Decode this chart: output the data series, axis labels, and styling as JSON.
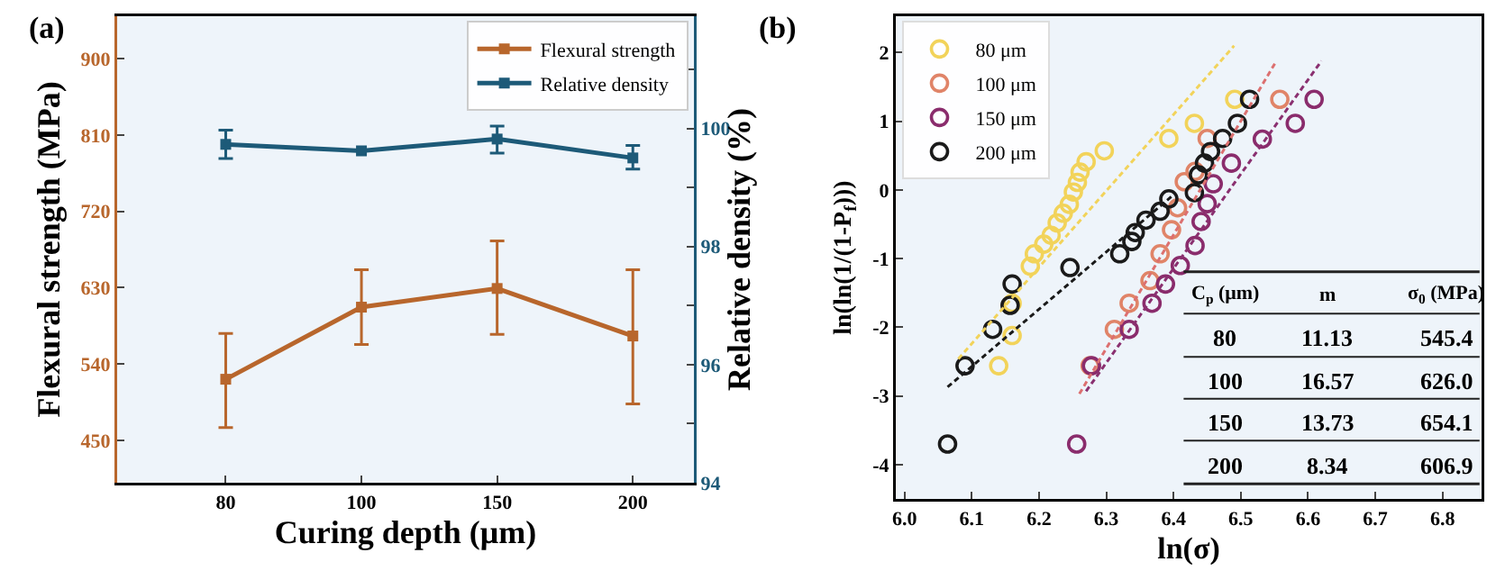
{
  "chart_data": [
    {
      "type": "line",
      "title": "(a)",
      "xlabel": "Curing depth (μm)",
      "ylabel": "Flexural strength (MPa)",
      "y2label": "Relative density (%)",
      "categories": [
        "80",
        "100",
        "150",
        "200"
      ],
      "series": [
        {
          "name": "Flexural strength",
          "color": "#b8662c",
          "values": [
            522,
            607,
            629,
            573
          ],
          "errors": [
            [
              465,
              576
            ],
            [
              563,
              651
            ],
            [
              575,
              685
            ],
            [
              493,
              651
            ]
          ]
        },
        {
          "name": "Relative density",
          "color": "#1d5a78",
          "axis": "y2",
          "values": [
            99.73,
            99.62,
            99.82,
            99.5
          ],
          "errors": [
            [
              99.49,
              99.97
            ],
            null,
            [
              99.58,
              100.04
            ],
            [
              99.31,
              99.71
            ]
          ]
        }
      ],
      "ylim": [
        400,
        950
      ],
      "yticks": [
        450,
        540,
        630,
        720,
        810,
        900
      ],
      "y2lim": [
        94,
        101.9
      ],
      "y2ticks": [
        94,
        {
          "value": 95,
          "label": null
        },
        96,
        {
          "value": 97,
          "label": null
        },
        98,
        {
          "value": 99,
          "label": null
        },
        100,
        {
          "value": 101,
          "label": null
        }
      ],
      "marker": "square",
      "grid": false,
      "legend": "top right"
    },
    {
      "type": "scatter",
      "title": "(b)",
      "xlabel": "ln(σ)",
      "ylabel": "ln(ln(1/(1-P$_{f}$)))",
      "series": [
        {
          "name": "80 μm",
          "color": "#f2d35a",
          "x": [
            6.14,
            6.16,
            6.16,
            6.187,
            6.193,
            6.207,
            6.218,
            6.227,
            6.236,
            6.245,
            6.251,
            6.257,
            6.261,
            6.27,
            6.297,
            6.393,
            6.431,
            6.491
          ],
          "values": [
            -2.56,
            -2.12,
            -1.65,
            -1.11,
            -0.93,
            -0.79,
            -0.66,
            -0.48,
            -0.34,
            -0.21,
            -0.03,
            0.11,
            0.26,
            0.41,
            0.57,
            0.75,
            0.97,
            1.32
          ]
        },
        {
          "name": "100 μm",
          "color": "#e08468",
          "x": [
            6.276,
            6.312,
            6.334,
            6.365,
            6.38,
            6.397,
            6.406,
            6.416,
            6.432,
            6.45,
            6.558
          ],
          "values": [
            -2.56,
            -2.03,
            -1.65,
            -1.32,
            -0.93,
            -0.58,
            -0.26,
            0.12,
            0.27,
            0.75,
            1.32
          ]
        },
        {
          "name": "150 μm",
          "color": "#8a2c6c",
          "x": [
            6.256,
            6.278,
            6.334,
            6.368,
            6.388,
            6.41,
            6.432,
            6.441,
            6.45,
            6.459,
            6.486,
            6.532,
            6.581,
            6.609
          ],
          "values": [
            -3.7,
            -2.56,
            -2.03,
            -1.65,
            -1.37,
            -1.1,
            -0.81,
            -0.46,
            -0.2,
            0.09,
            0.39,
            0.74,
            0.97,
            1.32
          ]
        },
        {
          "name": "200 μm",
          "color": "#1a1a1a",
          "x": [
            6.064,
            6.09,
            6.131,
            6.157,
            6.16,
            6.246,
            6.32,
            6.338,
            6.343,
            6.359,
            6.38,
            6.393,
            6.431,
            6.437,
            6.446,
            6.455,
            6.473,
            6.495,
            6.513
          ],
          "values": [
            -3.7,
            -2.56,
            -2.03,
            -1.68,
            -1.37,
            -1.13,
            -0.93,
            -0.75,
            -0.62,
            -0.44,
            -0.31,
            -0.13,
            -0.04,
            0.22,
            0.39,
            0.56,
            0.75,
            0.97,
            1.32
          ]
        },
        {
          "type": "line",
          "color": "#f2d35a",
          "line_style": "dashed",
          "marker": "none",
          "x": [
            6.08,
            6.49
          ],
          "values": [
            -2.46,
            2.1
          ]
        },
        {
          "type": "line",
          "color": "#dc7070",
          "line_style": "dashed",
          "marker": "none",
          "x": [
            6.26,
            6.553
          ],
          "values": [
            -2.97,
            1.88
          ]
        },
        {
          "type": "line",
          "color": "#8a3070",
          "line_style": "dashed",
          "marker": "none",
          "x": [
            6.27,
            6.62
          ],
          "values": [
            -2.93,
            1.88
          ]
        },
        {
          "type": "line",
          "color": "#1a1a1a",
          "line_style": "dashed",
          "marker": "none",
          "x": [
            6.064,
            6.4
          ],
          "values": [
            -2.87,
            -0.07
          ]
        }
      ],
      "xlim": [
        5.987,
        6.858
      ],
      "xticks": [
        {
          "value": 6.0,
          "label": "6.0"
        },
        6.1,
        6.2,
        6.3,
        6.4,
        6.5,
        6.6,
        6.7,
        6.8
      ],
      "ylim": [
        -4.5,
        2.53
      ],
      "yticks": [
        -4,
        -3,
        -2,
        -1,
        0,
        1,
        2
      ],
      "annotations": [
        "C$_{p}$ (μm)",
        "m",
        "σ$_{0}$ (MPa)",
        "80",
        "11.13",
        "545.4",
        "100",
        "16.57",
        "626.0",
        "150",
        "13.73",
        "654.1",
        "200",
        "8.34",
        "606.9"
      ],
      "marker": "circle",
      "grid": false,
      "legend": "top left"
    }
  ]
}
